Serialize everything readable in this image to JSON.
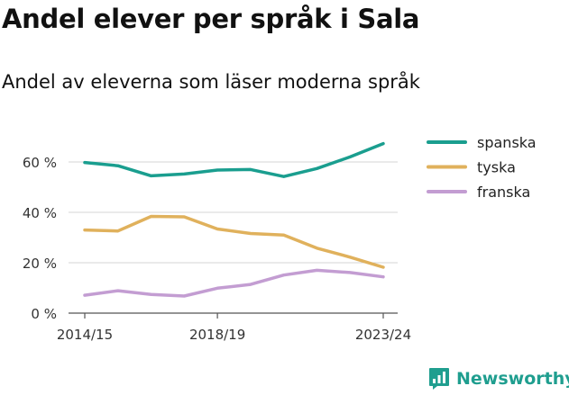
{
  "chart_data": {
    "type": "line",
    "title": "Andel elever per språk i Sala",
    "subtitle": "Andel av eleverna som läser moderna språk",
    "x": [
      "2014/15",
      "2015/16",
      "2016/17",
      "2017/18",
      "2018/19",
      "2019/20",
      "2020/21",
      "2021/22",
      "2022/23",
      "2023/24"
    ],
    "x_tick_labels": [
      "2014/15",
      "2018/19",
      "2023/24"
    ],
    "y_ticks": [
      0,
      20,
      40,
      60
    ],
    "y_tick_labels": [
      "0 %",
      "20 %",
      "40 %",
      "60 %"
    ],
    "ylim": [
      0,
      70
    ],
    "grid": true,
    "legend_position": "right",
    "series": [
      {
        "name": "spanska",
        "color": "#1a9e8f",
        "values": [
          59.8,
          58.5,
          54.5,
          55.2,
          56.8,
          57.0,
          54.2,
          57.4,
          62.0,
          67.3
        ]
      },
      {
        "name": "tyska",
        "color": "#e0b15c",
        "values": [
          33.0,
          32.6,
          38.4,
          38.2,
          33.4,
          31.6,
          31.0,
          25.8,
          22.2,
          18.2
        ]
      },
      {
        "name": "franska",
        "color": "#c39dd2",
        "values": [
          7.1,
          8.9,
          7.4,
          6.8,
          9.9,
          11.4,
          15.1,
          17.0,
          16.1,
          14.4
        ]
      }
    ]
  },
  "brand": {
    "name": "Newsworthy",
    "color": "#1f9e8f"
  }
}
